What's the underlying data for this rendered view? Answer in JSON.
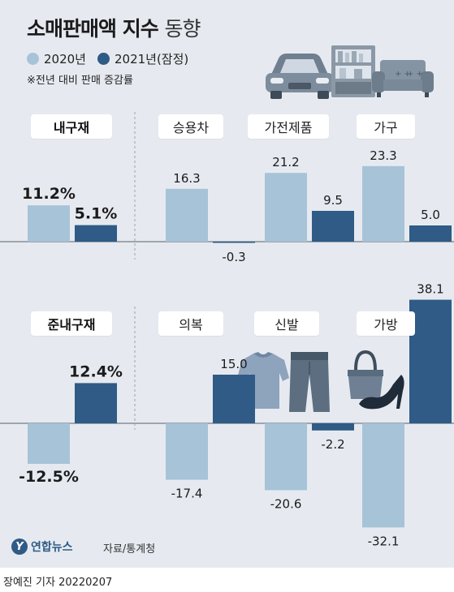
{
  "title_bold": "소매판매액 지수",
  "title_light": "동향",
  "legend": [
    {
      "label": "2020년",
      "color": "#a7c3d7"
    },
    {
      "label": "2021년(잠정)",
      "color": "#2f5b86"
    }
  ],
  "note": "※전년 대비 판매 증감률",
  "source": "자료/통계청",
  "logo_name": "연합뉴스",
  "byline": "장예진 기자  20220207",
  "chart_data": [
    {
      "type": "bar",
      "categories": [
        "내구재",
        "승용차",
        "가전제품",
        "가구"
      ],
      "series": [
        {
          "name": "2020년",
          "values": [
            11.2,
            16.3,
            21.2,
            23.3
          ]
        },
        {
          "name": "2021년(잠정)",
          "values": [
            5.1,
            -0.3,
            9.5,
            5.0
          ]
        }
      ],
      "value_labels": [
        [
          "11.2%",
          "16.3",
          "21.2",
          "23.3"
        ],
        [
          "5.1%",
          "-0.3",
          "9.5",
          "5.0"
        ]
      ],
      "title": "",
      "xlabel": "",
      "ylabel": ""
    },
    {
      "type": "bar",
      "categories": [
        "준내구재",
        "의복",
        "신발",
        "가방"
      ],
      "series": [
        {
          "name": "2020년",
          "values": [
            -12.5,
            -17.4,
            -20.6,
            -32.1
          ]
        },
        {
          "name": "2021년(잠정)",
          "values": [
            12.4,
            15.0,
            -2.2,
            38.1
          ]
        }
      ],
      "value_labels": [
        [
          "-12.5%",
          "-17.4",
          "-20.6",
          "-32.1"
        ],
        [
          "12.4%",
          "15.0",
          "-2.2",
          "38.1"
        ]
      ],
      "title": "",
      "xlabel": "",
      "ylabel": ""
    }
  ],
  "icons": [
    "car-icon",
    "shelf-icon",
    "sofa-icon",
    "shirt-icon",
    "pants-icon",
    "handbag-icon",
    "high-heel-icon"
  ]
}
